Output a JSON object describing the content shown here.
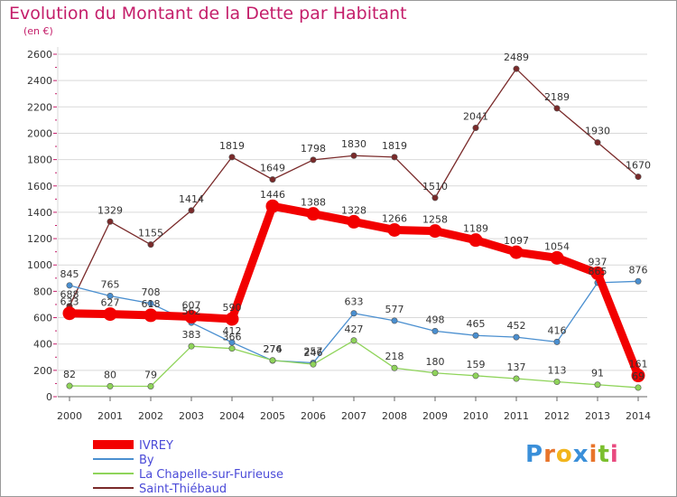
{
  "title": "Evolution du Montant de la Dette par Habitant",
  "unit_label": "(en €)",
  "logo": {
    "letters": [
      "P",
      "r",
      "o",
      "x",
      "i",
      "t",
      "i"
    ],
    "colors": [
      "#3a8fd9",
      "#e8742a",
      "#f2b51c",
      "#3a8fd9",
      "#e8742a",
      "#7bbf2e",
      "#e84a7f"
    ]
  },
  "colors": {
    "title": "#c41e6a",
    "axis_ticks": "#c41e6a",
    "grid": "#d9d9d9"
  },
  "chart_data": {
    "type": "line",
    "x": [
      "2000",
      "2001",
      "2002",
      "2003",
      "2004",
      "2005",
      "2006",
      "2007",
      "2008",
      "2009",
      "2010",
      "2011",
      "2012",
      "2013",
      "2014"
    ],
    "ylim": [
      0,
      2600
    ],
    "yticks": [
      0,
      200,
      400,
      600,
      800,
      1000,
      1200,
      1400,
      1600,
      1800,
      2000,
      2200,
      2400,
      2600
    ],
    "grid": true,
    "legend_placement": "bottom-left",
    "series": [
      {
        "name": "Saint-Thiébaud",
        "color": "#7a2a2a",
        "values": [
          688,
          1329,
          1155,
          1414,
          1819,
          1649,
          1798,
          1830,
          1819,
          1510,
          2041,
          2489,
          2189,
          1930,
          1670
        ]
      },
      {
        "name": "By",
        "color": "#4a8fd0",
        "values": [
          845,
          765,
          708,
          562,
          412,
          274,
          257,
          633,
          577,
          498,
          465,
          452,
          416,
          865,
          876
        ]
      },
      {
        "name": "La Chapelle-sur-Furieuse",
        "color": "#8fd45a",
        "values": [
          82,
          80,
          79,
          383,
          366,
          276,
          246,
          427,
          218,
          180,
          159,
          137,
          113,
          91,
          69
        ]
      },
      {
        "name": "IVREY",
        "color": "#f20000",
        "values": [
          633,
          627,
          618,
          607,
          590,
          1446,
          1388,
          1328,
          1266,
          1258,
          1189,
          1097,
          1054,
          937,
          161
        ]
      }
    ],
    "legend": [
      "IVREY",
      "By",
      "La Chapelle-sur-Furieuse",
      "Saint-Thiébaud"
    ]
  }
}
